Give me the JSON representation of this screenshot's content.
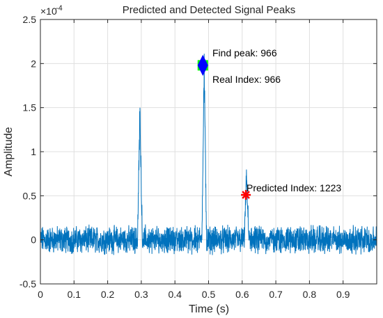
{
  "chart_data": {
    "type": "line",
    "title": "Predicted and Detected Signal Peaks",
    "xlabel": "Time (s)",
    "ylabel": "Amplitude",
    "y_exponent_label": "×10",
    "y_exponent_power": "-4",
    "xlim": [
      0,
      1.0
    ],
    "ylim": [
      -0.5,
      2.5
    ],
    "y_scale_factor": 0.0001,
    "grid": true,
    "xticks": [
      "0",
      "0.1",
      "0.2",
      "0.3",
      "0.4",
      "0.5",
      "0.6",
      "0.7",
      "0.8",
      "0.9"
    ],
    "xtick_values": [
      0,
      0.1,
      0.2,
      0.3,
      0.4,
      0.5,
      0.6,
      0.7,
      0.8,
      0.9
    ],
    "yticks": [
      "-0.5",
      "0",
      "0.5",
      "1",
      "1.5",
      "2",
      "2.5"
    ],
    "ytick_values": [
      -0.5,
      0,
      0.5,
      1,
      1.5,
      2,
      2.5
    ],
    "series": [
      {
        "color": "#0072BD",
        "noise_amplitude": 0.12,
        "peaks": [
          {
            "center": 0.296,
            "height": 1.6,
            "width": 0.006
          },
          {
            "center": 0.487,
            "height": 2.1,
            "width": 0.006
          },
          {
            "center": 0.613,
            "height": 0.78,
            "width": 0.006
          }
        ]
      }
    ],
    "markers": [
      {
        "label": "Find peak: 966",
        "x": 0.483,
        "y": 1.98,
        "symbol": "green-square",
        "color": "#00FF00"
      },
      {
        "label": "Real Index: 966",
        "x": 0.483,
        "y": 1.98,
        "symbol": "blue-diamond",
        "color": "#0000FF"
      },
      {
        "label": "Predicted Index: 1223",
        "x": 0.611,
        "y": 0.51,
        "symbol": "red-asterisk",
        "color": "#FF0000"
      }
    ]
  }
}
